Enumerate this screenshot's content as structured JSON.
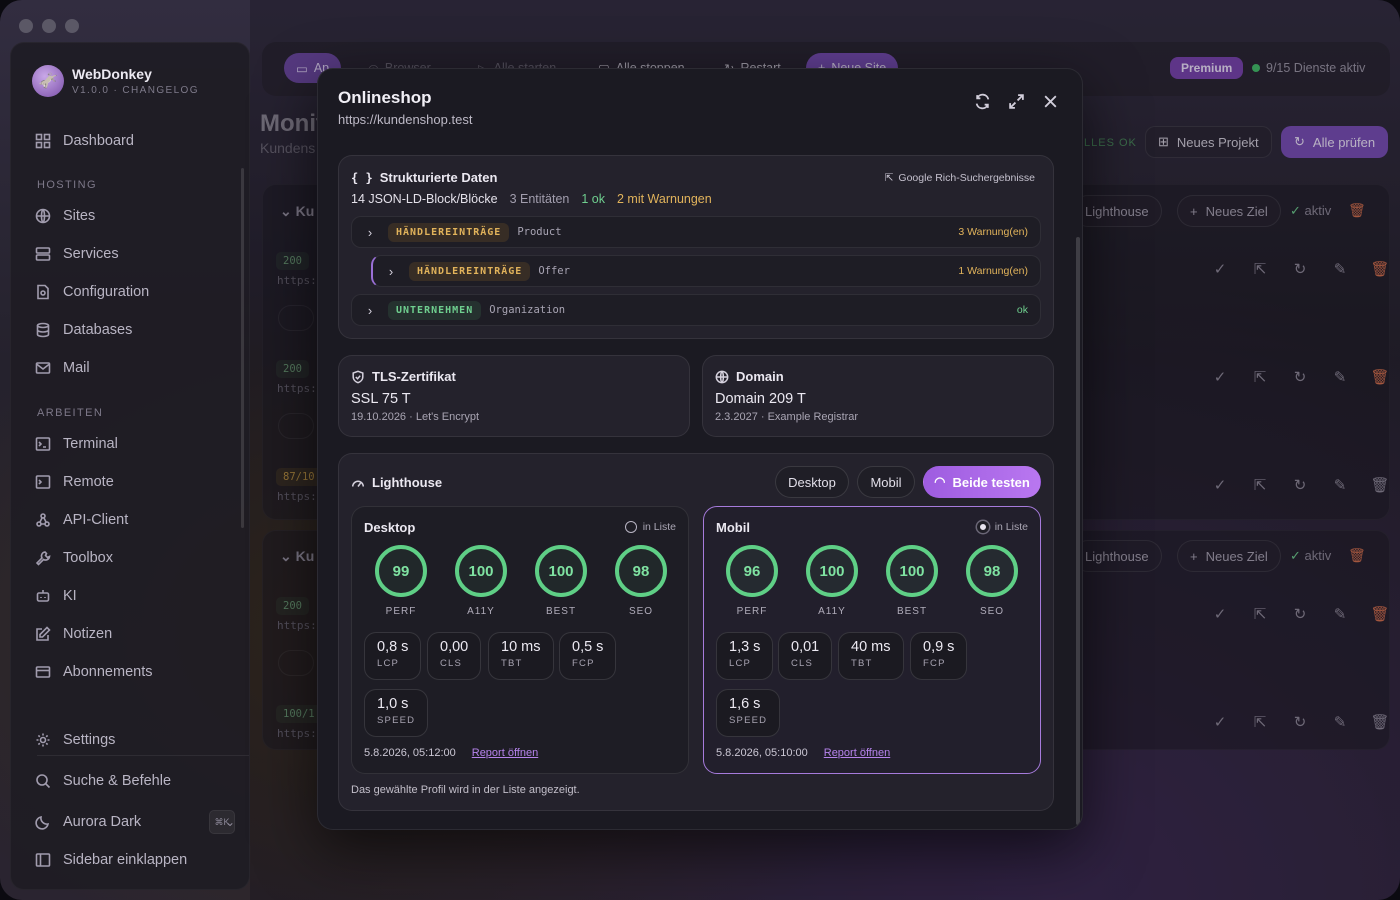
{
  "app": {
    "name": "WebDonkey",
    "version": "V1.0.0 · CHANGELOG",
    "logo_icon": "donkey-logo"
  },
  "sidebar": {
    "top": [
      {
        "label": "Dashboard"
      }
    ],
    "hosting_heading": "HOSTING",
    "hosting": [
      {
        "label": "Sites"
      },
      {
        "label": "Services"
      },
      {
        "label": "Configuration"
      },
      {
        "label": "Databases"
      },
      {
        "label": "Mail"
      }
    ],
    "arbeiten_heading": "ARBEITEN",
    "arbeiten": [
      {
        "label": "Terminal"
      },
      {
        "label": "Remote"
      },
      {
        "label": "API-Client"
      },
      {
        "label": "Toolbox"
      },
      {
        "label": "KI"
      },
      {
        "label": "Notizen"
      },
      {
        "label": "Abonnements"
      }
    ],
    "bottom": [
      {
        "label": "Settings"
      },
      {
        "label": "Suche & Befehle",
        "shortcut": "⌘K"
      },
      {
        "label": "Aurora Dark"
      },
      {
        "label": "Sidebar einklappen"
      }
    ]
  },
  "background": {
    "tabs": [
      "Ap",
      "Browser",
      "Alle starten",
      "Alle stoppen",
      "Restart",
      "Neue Site"
    ],
    "premium": "Premium",
    "services_status": "9/15 Dienste aktiv",
    "page_title": "Monit",
    "page_subtitle": "Kundens",
    "alles_ok": "LLES OK",
    "new_project": "Neues Projekt",
    "check_all": "Alle prüfen",
    "group_label": "Ku",
    "lighthouse": "Lighthouse",
    "new_target": "Neues Ziel",
    "active": "aktiv",
    "status_200": "200",
    "url_prefix": "https:",
    "score_87": "87/10",
    "score_100": "100/1"
  },
  "modal": {
    "title": "Onlineshop",
    "url": "https://kundenshop.test",
    "structured": {
      "heading": "Strukturierte Daten",
      "google_link": "Google Rich-Suchergebnisse",
      "summary": "14 JSON-LD-Block/Blöcke",
      "entities": "3 Entitäten",
      "ok": "1 ok",
      "warnings": "2 mit Warnungen",
      "rows": [
        {
          "tag": "HÄNDLEREINTRÄGE",
          "type": "Product",
          "status": "3 Warnung(en)"
        },
        {
          "tag": "HÄNDLEREINTRÄGE",
          "type": "Offer",
          "status": "1 Warnung(en)"
        },
        {
          "tag": "UNTERNEHMEN",
          "type": "Organization",
          "status": "ok"
        }
      ]
    },
    "tls": {
      "heading": "TLS-Zertifikat",
      "value": "SSL 75 T",
      "detail": "19.10.2026 · Let's Encrypt"
    },
    "domain": {
      "heading": "Domain",
      "value": "Domain 209 T",
      "detail": "2.3.2027 · Example Registrar"
    },
    "lighthouse": {
      "heading": "Lighthouse",
      "btn_desktop": "Desktop",
      "btn_mobil": "Mobil",
      "btn_both": "Beide testen",
      "footer_note": "Das gewählte Profil wird in der Liste angezeigt.",
      "report_link": "Report öffnen",
      "in_list": "in Liste",
      "profiles": [
        {
          "name": "Desktop",
          "selected": false,
          "scores": [
            {
              "v": "99",
              "k": "PERF"
            },
            {
              "v": "100",
              "k": "A11Y"
            },
            {
              "v": "100",
              "k": "BEST"
            },
            {
              "v": "98",
              "k": "SEO"
            }
          ],
          "metrics": [
            {
              "v": "0,8 s",
              "k": "LCP"
            },
            {
              "v": "0,00",
              "k": "CLS"
            },
            {
              "v": "10 ms",
              "k": "TBT"
            },
            {
              "v": "0,5 s",
              "k": "FCP"
            },
            {
              "v": "1,0 s",
              "k": "SPEED"
            }
          ],
          "date": "5.8.2026, 05:12:00"
        },
        {
          "name": "Mobil",
          "selected": true,
          "scores": [
            {
              "v": "96",
              "k": "PERF"
            },
            {
              "v": "100",
              "k": "A11Y"
            },
            {
              "v": "100",
              "k": "BEST"
            },
            {
              "v": "98",
              "k": "SEO"
            }
          ],
          "metrics": [
            {
              "v": "1,3 s",
              "k": "LCP"
            },
            {
              "v": "0,01",
              "k": "CLS"
            },
            {
              "v": "40 ms",
              "k": "TBT"
            },
            {
              "v": "0,9 s",
              "k": "FCP"
            },
            {
              "v": "1,6 s",
              "k": "SPEED"
            }
          ],
          "date": "5.8.2026, 05:10:00"
        }
      ]
    }
  },
  "colors": {
    "accent": "#a66ee6",
    "ok": "#5fcf86",
    "warn": "#e1b35b",
    "danger": "#d6714e"
  }
}
